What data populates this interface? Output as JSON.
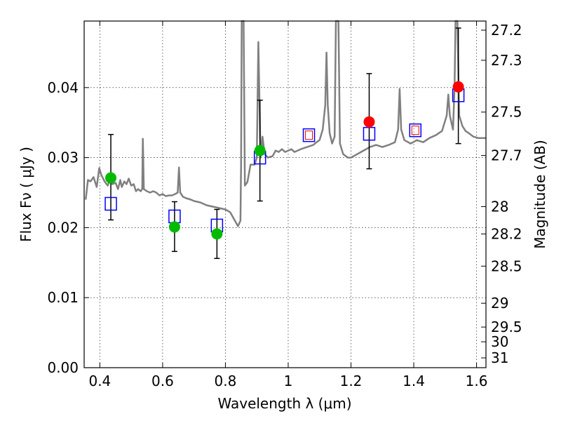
{
  "chart_data": {
    "type": "scatter",
    "xlabel": "Wavelength  λ (μm)",
    "ylabel_left": "Flux  Fν  ( μJy )",
    "ylabel_right": "Magnitude (AB)",
    "xlim": [
      0.35,
      1.63
    ],
    "ylim": [
      0.0,
      0.0495
    ],
    "grid": true,
    "x_ticks": [
      {
        "value": 0.4,
        "label": "0.4"
      },
      {
        "value": 0.6,
        "label": "0.6"
      },
      {
        "value": 0.8,
        "label": "0.8"
      },
      {
        "value": 1.0,
        "label": "1"
      },
      {
        "value": 1.2,
        "label": "1.2"
      },
      {
        "value": 1.4,
        "label": "1.4"
      },
      {
        "value": 1.6,
        "label": "1.6"
      }
    ],
    "y_ticks": [
      {
        "value": 0.0,
        "label": "0.00"
      },
      {
        "value": 0.01,
        "label": "0.01"
      },
      {
        "value": 0.02,
        "label": "0.02"
      },
      {
        "value": 0.03,
        "label": "0.03"
      },
      {
        "value": 0.04,
        "label": "0.04"
      }
    ],
    "right_ticks": [
      {
        "label": "27.2",
        "flux": 0.0482
      },
      {
        "label": "27.3",
        "flux": 0.0439
      },
      {
        "label": "27.5",
        "flux": 0.0365
      },
      {
        "label": "27.7",
        "flux": 0.0303
      },
      {
        "label": "28",
        "flux": 0.023
      },
      {
        "label": "28.2",
        "flux": 0.0191
      },
      {
        "label": "28.5",
        "flux": 0.0145
      },
      {
        "label": "29",
        "flux": 0.0092
      },
      {
        "label": "29.5",
        "flux": 0.0058
      },
      {
        "label": "30",
        "flux": 0.0037
      },
      {
        "label": "31",
        "flux": 0.0014
      }
    ],
    "colors": {
      "spectrum": "#808080",
      "model_box": "#0000ff",
      "model_box_inner": "#ff0000",
      "optical_obs": "#00bb00",
      "nir_obs": "#ff0000",
      "errorbar": "#000000"
    },
    "spectrum": [
      [
        0.355,
        0.024
      ],
      [
        0.362,
        0.0268
      ],
      [
        0.37,
        0.0266
      ],
      [
        0.38,
        0.0272
      ],
      [
        0.39,
        0.0258
      ],
      [
        0.398,
        0.0285
      ],
      [
        0.405,
        0.0275
      ],
      [
        0.415,
        0.0266
      ],
      [
        0.425,
        0.026
      ],
      [
        0.432,
        0.0268
      ],
      [
        0.44,
        0.0262
      ],
      [
        0.45,
        0.0264
      ],
      [
        0.458,
        0.0255
      ],
      [
        0.465,
        0.0268
      ],
      [
        0.47,
        0.0258
      ],
      [
        0.478,
        0.0266
      ],
      [
        0.485,
        0.0262
      ],
      [
        0.492,
        0.027
      ],
      [
        0.5,
        0.026
      ],
      [
        0.508,
        0.0262
      ],
      [
        0.515,
        0.0252
      ],
      [
        0.522,
        0.0255
      ],
      [
        0.53,
        0.0252
      ],
      [
        0.535,
        0.0255
      ],
      [
        0.537,
        0.0327
      ],
      [
        0.54,
        0.0255
      ],
      [
        0.55,
        0.0252
      ],
      [
        0.56,
        0.025
      ],
      [
        0.57,
        0.0252
      ],
      [
        0.58,
        0.025
      ],
      [
        0.59,
        0.0246
      ],
      [
        0.6,
        0.0248
      ],
      [
        0.61,
        0.0245
      ],
      [
        0.62,
        0.0246
      ],
      [
        0.63,
        0.0246
      ],
      [
        0.64,
        0.0248
      ],
      [
        0.648,
        0.025
      ],
      [
        0.652,
        0.0286
      ],
      [
        0.656,
        0.025
      ],
      [
        0.665,
        0.0244
      ],
      [
        0.675,
        0.0242
      ],
      [
        0.69,
        0.024
      ],
      [
        0.7,
        0.0238
      ],
      [
        0.72,
        0.0236
      ],
      [
        0.74,
        0.0232
      ],
      [
        0.76,
        0.023
      ],
      [
        0.78,
        0.0228
      ],
      [
        0.8,
        0.0226
      ],
      [
        0.815,
        0.0222
      ],
      [
        0.83,
        0.021
      ],
      [
        0.84,
        0.0202
      ],
      [
        0.848,
        0.021
      ],
      [
        0.85,
        0.029
      ],
      [
        0.852,
        0.0495
      ],
      [
        0.858,
        0.0495
      ],
      [
        0.862,
        0.026
      ],
      [
        0.87,
        0.0265
      ],
      [
        0.88,
        0.029
      ],
      [
        0.893,
        0.029
      ],
      [
        0.9,
        0.03
      ],
      [
        0.905,
        0.0465
      ],
      [
        0.912,
        0.03
      ],
      [
        0.918,
        0.033
      ],
      [
        0.925,
        0.0305
      ],
      [
        0.935,
        0.03
      ],
      [
        0.95,
        0.0302
      ],
      [
        0.96,
        0.031
      ],
      [
        0.97,
        0.0308
      ],
      [
        0.98,
        0.0312
      ],
      [
        0.99,
        0.0308
      ],
      [
        1.0,
        0.031
      ],
      [
        1.01,
        0.0312
      ],
      [
        1.02,
        0.0308
      ],
      [
        1.03,
        0.031
      ],
      [
        1.04,
        0.0312
      ],
      [
        1.06,
        0.0315
      ],
      [
        1.08,
        0.0318
      ],
      [
        1.09,
        0.0322
      ],
      [
        1.1,
        0.0325
      ],
      [
        1.11,
        0.034
      ],
      [
        1.118,
        0.0375
      ],
      [
        1.122,
        0.045
      ],
      [
        1.126,
        0.0375
      ],
      [
        1.132,
        0.0335
      ],
      [
        1.14,
        0.032
      ],
      [
        1.148,
        0.033
      ],
      [
        1.152,
        0.0495
      ],
      [
        1.16,
        0.0495
      ],
      [
        1.165,
        0.032
      ],
      [
        1.175,
        0.0305
      ],
      [
        1.19,
        0.03
      ],
      [
        1.2,
        0.03
      ],
      [
        1.22,
        0.0305
      ],
      [
        1.24,
        0.031
      ],
      [
        1.26,
        0.0315
      ],
      [
        1.28,
        0.0318
      ],
      [
        1.3,
        0.0315
      ],
      [
        1.32,
        0.0318
      ],
      [
        1.34,
        0.0322
      ],
      [
        1.35,
        0.034
      ],
      [
        1.355,
        0.0398
      ],
      [
        1.36,
        0.034
      ],
      [
        1.37,
        0.0325
      ],
      [
        1.39,
        0.032
      ],
      [
        1.41,
        0.0325
      ],
      [
        1.43,
        0.0322
      ],
      [
        1.45,
        0.0328
      ],
      [
        1.47,
        0.0332
      ],
      [
        1.49,
        0.0338
      ],
      [
        1.505,
        0.036
      ],
      [
        1.51,
        0.039
      ],
      [
        1.515,
        0.036
      ],
      [
        1.525,
        0.034
      ],
      [
        1.53,
        0.04
      ],
      [
        1.533,
        0.0495
      ],
      [
        1.539,
        0.0495
      ],
      [
        1.545,
        0.036
      ],
      [
        1.555,
        0.0345
      ],
      [
        1.565,
        0.0338
      ],
      [
        1.575,
        0.0335
      ],
      [
        1.59,
        0.033
      ],
      [
        1.605,
        0.0328
      ],
      [
        1.63,
        0.0328
      ]
    ],
    "model_points": [
      {
        "x": 0.435,
        "y": 0.0234,
        "inner": false
      },
      {
        "x": 0.638,
        "y": 0.0216,
        "inner": false
      },
      {
        "x": 0.773,
        "y": 0.0203,
        "inner": false
      },
      {
        "x": 0.91,
        "y": 0.03,
        "inner": false
      },
      {
        "x": 1.066,
        "y": 0.0332,
        "inner": true
      },
      {
        "x": 1.258,
        "y": 0.0334,
        "inner": false
      },
      {
        "x": 1.405,
        "y": 0.0339,
        "inner": true
      },
      {
        "x": 1.542,
        "y": 0.0389,
        "inner": false
      }
    ],
    "obs_points": [
      {
        "x": 0.435,
        "y": 0.0271,
        "err_low": 0.0211,
        "err_high": 0.0333,
        "band": "optical"
      },
      {
        "x": 0.638,
        "y": 0.0201,
        "err_low": 0.0166,
        "err_high": 0.0237,
        "band": "optical"
      },
      {
        "x": 0.773,
        "y": 0.0191,
        "err_low": 0.0156,
        "err_high": 0.0226,
        "band": "optical"
      },
      {
        "x": 0.91,
        "y": 0.031,
        "err_low": 0.0238,
        "err_high": 0.0382,
        "band": "optical"
      },
      {
        "x": 1.258,
        "y": 0.0351,
        "err_low": 0.0284,
        "err_high": 0.042,
        "band": "nir"
      },
      {
        "x": 1.542,
        "y": 0.0401,
        "err_low": 0.032,
        "err_high": 0.0485,
        "band": "nir"
      }
    ]
  }
}
